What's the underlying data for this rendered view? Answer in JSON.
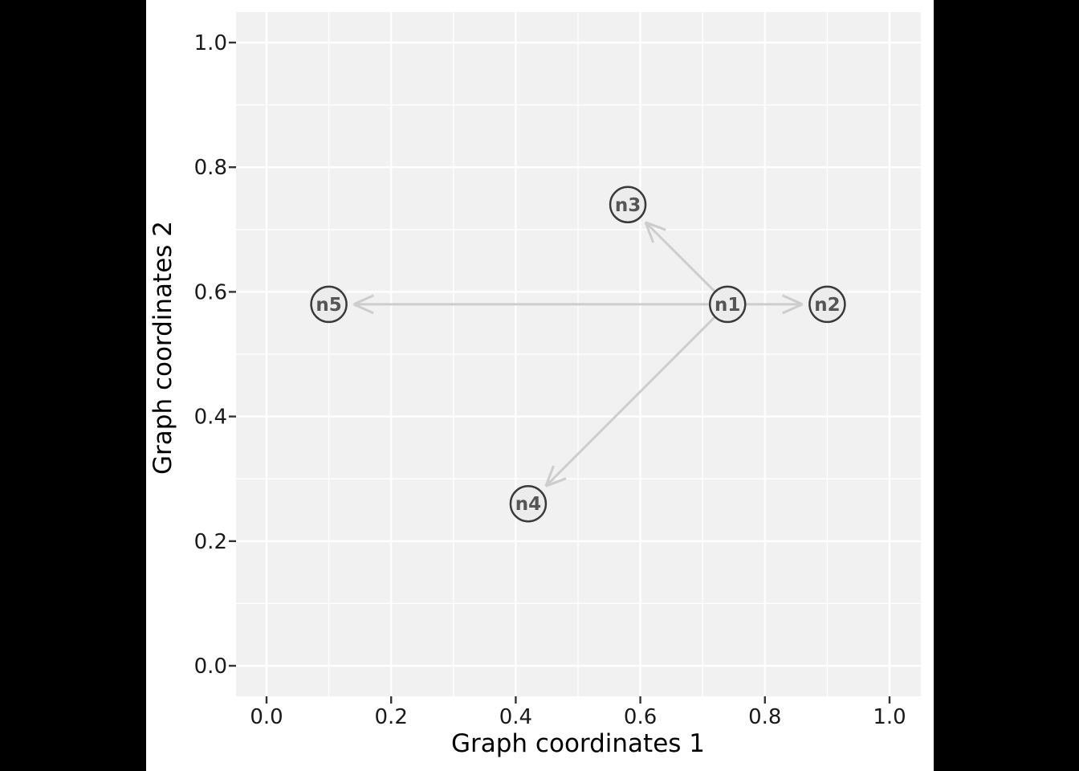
{
  "figure": {
    "canvas_background": "#000000",
    "page_background": "#ffffff"
  },
  "chart_data": {
    "type": "scatter",
    "subtype": "directed-network-graph",
    "title": "",
    "xlabel": "Graph coordinates 1",
    "ylabel": "Graph coordinates 2",
    "xlim": [
      -0.048,
      1.048
    ],
    "ylim": [
      -0.048,
      1.048
    ],
    "xticks": [
      0.0,
      0.2,
      0.4,
      0.6,
      0.8,
      1.0
    ],
    "yticks": [
      0.0,
      0.2,
      0.4,
      0.6,
      0.8,
      1.0
    ],
    "xtick_labels": [
      "0.0",
      "0.2",
      "0.4",
      "0.6",
      "0.8",
      "1.0"
    ],
    "ytick_labels": [
      "0.0",
      "0.2",
      "0.4",
      "0.6",
      "0.8",
      "1.0"
    ],
    "minor_ticks": [
      0.1,
      0.3,
      0.5,
      0.7,
      0.9
    ],
    "grid": true,
    "legend": false,
    "panel_background": "#f1f1f1",
    "grid_color": "#ffffff",
    "nodes": [
      {
        "id": "n1",
        "x": 0.74,
        "y": 0.58
      },
      {
        "id": "n2",
        "x": 0.9,
        "y": 0.58
      },
      {
        "id": "n3",
        "x": 0.58,
        "y": 0.74
      },
      {
        "id": "n4",
        "x": 0.42,
        "y": 0.26
      },
      {
        "id": "n5",
        "x": 0.1,
        "y": 0.58
      }
    ],
    "edges": [
      {
        "from": "n1",
        "to": "n2"
      },
      {
        "from": "n1",
        "to": "n3"
      },
      {
        "from": "n1",
        "to": "n4"
      },
      {
        "from": "n1",
        "to": "n5"
      }
    ],
    "node_style": {
      "radius": 22,
      "fill": "#ececec",
      "stroke": "#3a3a3a",
      "stroke_width": 2.5,
      "label_color": "#555555"
    },
    "edge_style": {
      "color": "#cdcdcd",
      "width": 3,
      "arrowhead": "open-chevron"
    },
    "colors": {
      "tick_mark": "#333333",
      "tick_label": "#1a1a1a",
      "axis_title": "#000000"
    }
  }
}
